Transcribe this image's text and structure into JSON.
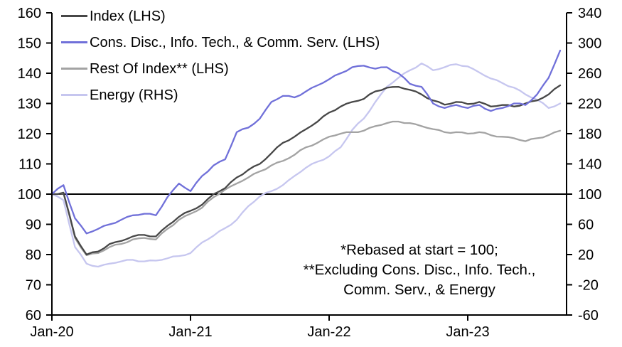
{
  "chart_data": {
    "type": "line",
    "title": "",
    "footnote_lines": [
      "*Rebased at start = 100;",
      "**Excluding Cons. Disc., Info. Tech.,",
      "Comm. Serv., & Energy"
    ],
    "x_axis": {
      "unit": "month",
      "start": "Jan-20",
      "tick_labels": [
        "Jan-20",
        "Jan-21",
        "Jan-22",
        "Jan-23"
      ],
      "tick_month_index": [
        0,
        12,
        24,
        36
      ]
    },
    "left_axis": {
      "min": 60,
      "max": 160,
      "step": 10,
      "ticks": [
        160,
        150,
        140,
        130,
        120,
        110,
        100,
        90,
        80,
        70,
        60
      ]
    },
    "right_axis": {
      "min": -60,
      "max": 340,
      "step": 40,
      "ticks": [
        340,
        300,
        260,
        220,
        180,
        140,
        100,
        60,
        20,
        -20,
        -60
      ]
    },
    "baseline_value": 100,
    "grid": false,
    "legend_position": "top-left",
    "months": [
      "Jan-20",
      "Feb-20",
      "Mar-20",
      "Apr-20",
      "May-20",
      "Jun-20",
      "Jul-20",
      "Aug-20",
      "Sep-20",
      "Oct-20",
      "Nov-20",
      "Dec-20",
      "Jan-21",
      "Feb-21",
      "Mar-21",
      "Apr-21",
      "May-21",
      "Jun-21",
      "Jul-21",
      "Aug-21",
      "Sep-21",
      "Oct-21",
      "Nov-21",
      "Dec-21",
      "Jan-22",
      "Feb-22",
      "Mar-22",
      "Apr-22",
      "May-22",
      "Jun-22",
      "Jul-22",
      "Aug-22",
      "Sep-22",
      "Oct-22",
      "Nov-22",
      "Dec-22",
      "Jan-23",
      "Feb-23",
      "Mar-23",
      "Apr-23",
      "May-23",
      "Jun-23",
      "Jul-23",
      "Aug-23",
      "Sep-23"
    ],
    "series": [
      {
        "name": "Index (LHS)",
        "axis": "left",
        "color": "#474747",
        "values": [
          100,
          100.5,
          86,
          80,
          81,
          83.5,
          84.5,
          86,
          86.5,
          86,
          89.5,
          92.5,
          94.5,
          96.5,
          100,
          102,
          105.5,
          108,
          110,
          113.5,
          117,
          119,
          121.5,
          124,
          127,
          129,
          130.5,
          131.5,
          134,
          135.2,
          135.5,
          134.5,
          133,
          131,
          129.6,
          130.5,
          129.8,
          130.5,
          129,
          129.5,
          129,
          130,
          131,
          133,
          136
        ]
      },
      {
        "name": "Cons. Disc., Info. Tech., & Comm. Serv. (LHS)",
        "axis": "left",
        "color": "#7070d9",
        "values": [
          100,
          103,
          92,
          87,
          88.5,
          90,
          91.5,
          93,
          93.5,
          93,
          99,
          103.5,
          101,
          106,
          109.5,
          111.5,
          120.5,
          122,
          125,
          130.5,
          132.5,
          132,
          134,
          136,
          138,
          140,
          142,
          142.5,
          141.5,
          142,
          140,
          136.5,
          135.5,
          130,
          128.5,
          129.5,
          128.5,
          129.5,
          127.5,
          128.5,
          130,
          129.5,
          133,
          138.5,
          147.5
        ]
      },
      {
        "name": "Rest Of Index** (LHS)",
        "axis": "left",
        "color": "#a3a3a3",
        "values": [
          100,
          100.3,
          85.5,
          79.8,
          80.5,
          82.5,
          83.5,
          85,
          85.5,
          85,
          88.5,
          91.5,
          93.5,
          95.5,
          99,
          101.5,
          103.5,
          105.5,
          107.5,
          109.5,
          111,
          113,
          115.5,
          117,
          119,
          120,
          120.5,
          121,
          122.5,
          123.5,
          124,
          123.5,
          122.5,
          121.5,
          120.5,
          120.5,
          120,
          120.5,
          119.5,
          119,
          118.5,
          117.5,
          118.5,
          119.5,
          121
        ]
      },
      {
        "name": "Energy (RHS)",
        "axis": "right",
        "color": "#c6c6ef",
        "values": [
          100,
          92,
          30,
          8,
          4,
          8,
          11,
          13,
          11,
          12,
          15,
          18,
          22,
          36,
          45,
          55,
          66,
          84,
          97,
          104,
          112,
          124,
          135,
          143,
          150,
          162,
          185,
          200,
          222,
          242,
          254,
          264,
          273,
          264,
          268,
          272,
          269,
          261,
          253,
          247,
          241,
          232,
          225,
          214,
          220
        ]
      }
    ]
  },
  "colors": {
    "axis": "#000000",
    "baseline": "#000000",
    "text": "#000000",
    "background": "#ffffff"
  }
}
